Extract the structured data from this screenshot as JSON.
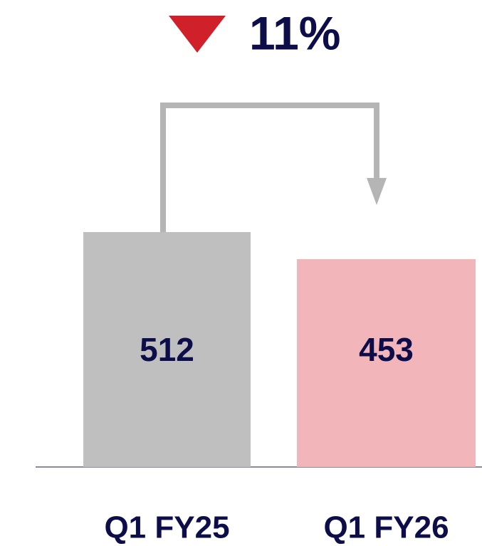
{
  "chart_data": {
    "type": "bar",
    "annotation": "11%",
    "categories": [
      "Q1 FY25",
      "Q1 FY26"
    ],
    "values": [
      512,
      453
    ],
    "colors": [
      "#bfbfbf",
      "#f2b6ba"
    ]
  }
}
